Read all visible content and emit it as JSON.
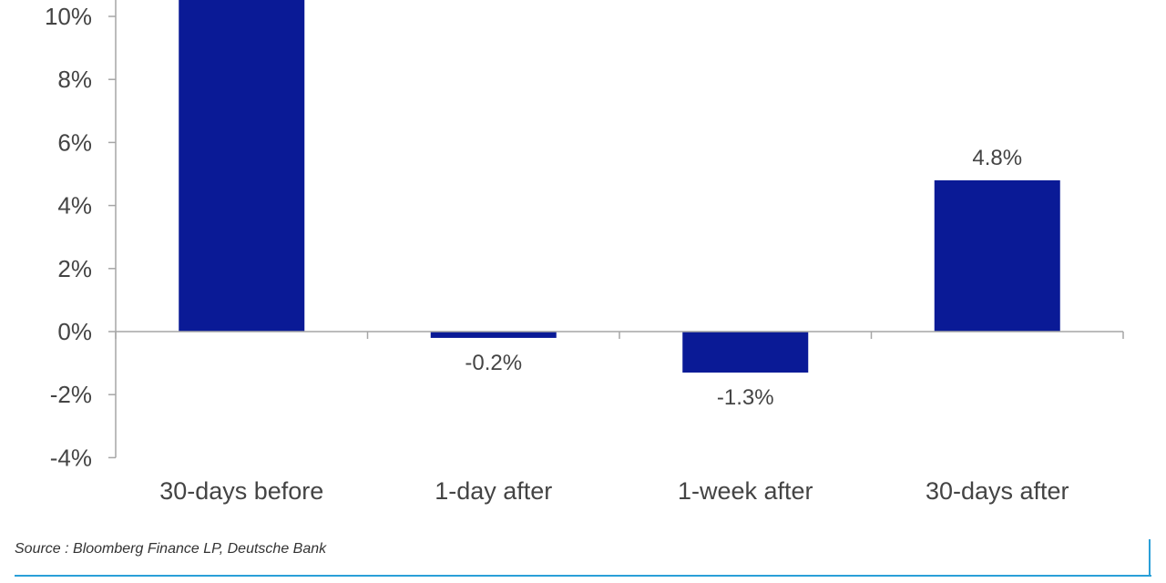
{
  "chart_data": {
    "type": "bar",
    "categories": [
      "30-days before",
      "1-day after",
      "1-week after",
      "30-days after"
    ],
    "values": [
      10.6,
      -0.2,
      -1.3,
      4.8
    ],
    "data_labels": [
      "",
      "-0.2%",
      "-1.3%",
      "4.8%"
    ],
    "y_ticks": [
      "-4%",
      "-2%",
      "0%",
      "2%",
      "4%",
      "6%",
      "8%",
      "10%"
    ],
    "y_tick_values": [
      -4,
      -2,
      0,
      2,
      4,
      6,
      8,
      10
    ],
    "ylim": [
      -4,
      10.6
    ],
    "bar_color": "#0a1a96",
    "axis_color": "#a6a6a6",
    "title": "",
    "xlabel": "",
    "ylabel": ""
  },
  "footer": {
    "source": "Source : Bloomberg Finance LP, Deutsche Bank",
    "rule_color": "#2a9fd8"
  }
}
